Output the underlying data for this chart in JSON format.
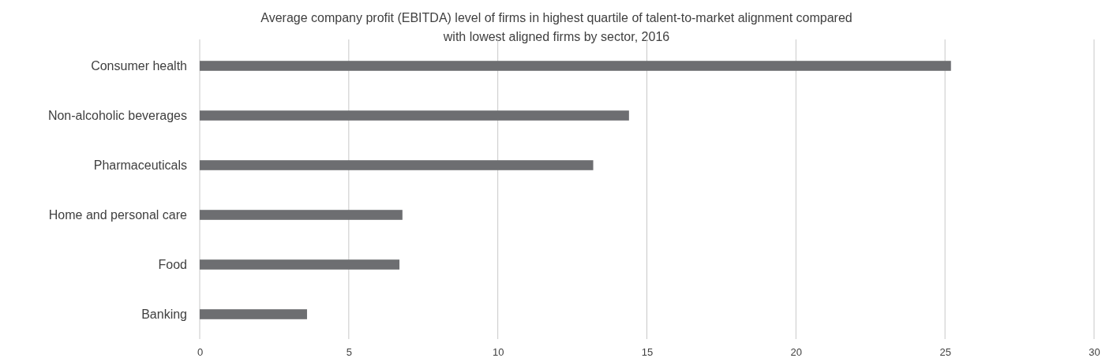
{
  "chart_data": {
    "type": "bar",
    "orientation": "horizontal",
    "title": "Average company profit (EBITDA) level of firms in highest quartile of talent-to-market alignment compared with lowest aligned firms by sector, 2016",
    "categories": [
      "Consumer health",
      "Non-alcoholic beverages",
      "Pharmaceuticals",
      "Home and personal care",
      "Food",
      "Banking"
    ],
    "values": [
      25.2,
      14.4,
      13.2,
      6.8,
      6.7,
      3.6
    ],
    "color": "#6d6e71",
    "xlim": [
      0,
      30
    ],
    "xticks": [
      0,
      5,
      10,
      15,
      20,
      25,
      30
    ],
    "grid": "x"
  }
}
